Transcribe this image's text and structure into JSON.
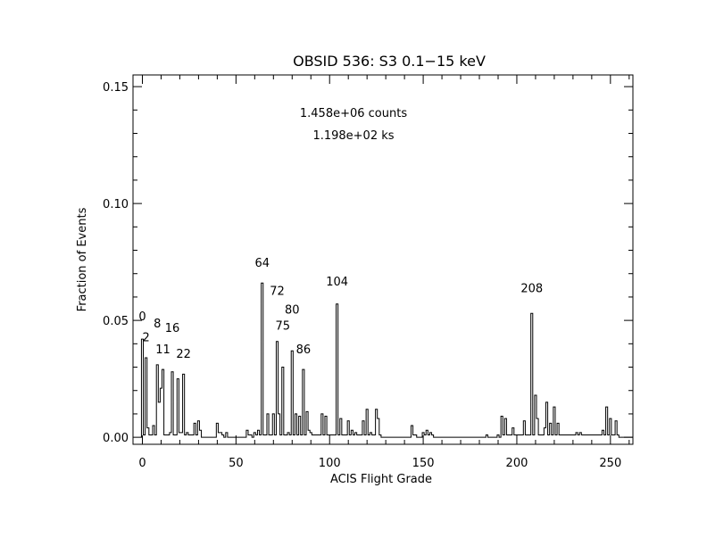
{
  "chart_data": {
    "type": "bar",
    "title": "OBSID 536: S3 0.1−15 keV",
    "xlabel": "ACIS Flight Grade",
    "ylabel": "Fraction of Events",
    "xlim": [
      -5,
      262
    ],
    "ylim": [
      -0.003,
      0.155
    ],
    "xticks": [
      0,
      50,
      100,
      150,
      200,
      250
    ],
    "xtick_labels": [
      "0",
      "50",
      "100",
      "150",
      "200",
      "250"
    ],
    "yticks": [
      0,
      0.05,
      0.1,
      0.15
    ],
    "ytick_labels": [
      "0.00",
      "0.05",
      "0.10",
      "0.15"
    ],
    "info_lines": [
      "1.458e+06 counts",
      "1.198e+02 ks"
    ],
    "grade_labels": [
      {
        "text": "0",
        "x": 0,
        "y": 0.05
      },
      {
        "text": "2",
        "x": 2,
        "y": 0.041
      },
      {
        "text": "8",
        "x": 8,
        "y": 0.047
      },
      {
        "text": "11",
        "x": 11,
        "y": 0.036
      },
      {
        "text": "16",
        "x": 16,
        "y": 0.045
      },
      {
        "text": "22",
        "x": 22,
        "y": 0.034
      },
      {
        "text": "64",
        "x": 64,
        "y": 0.073
      },
      {
        "text": "72",
        "x": 72,
        "y": 0.061
      },
      {
        "text": "75",
        "x": 75,
        "y": 0.046
      },
      {
        "text": "80",
        "x": 80,
        "y": 0.053
      },
      {
        "text": "86",
        "x": 86,
        "y": 0.036
      },
      {
        "text": "104",
        "x": 104,
        "y": 0.065
      },
      {
        "text": "208",
        "x": 208,
        "y": 0.062
      }
    ],
    "points": [
      [
        0,
        0.042
      ],
      [
        1,
        0.001
      ],
      [
        2,
        0.034
      ],
      [
        3,
        0.004
      ],
      [
        4,
        0.001
      ],
      [
        5,
        0.001
      ],
      [
        6,
        0.005
      ],
      [
        7,
        0.001
      ],
      [
        8,
        0.031
      ],
      [
        9,
        0.015
      ],
      [
        10,
        0.021
      ],
      [
        11,
        0.029
      ],
      [
        12,
        0.001
      ],
      [
        13,
        0.001
      ],
      [
        14,
        0.001
      ],
      [
        15,
        0.002
      ],
      [
        16,
        0.028
      ],
      [
        17,
        0.001
      ],
      [
        18,
        0.001
      ],
      [
        19,
        0.025
      ],
      [
        20,
        0.002
      ],
      [
        21,
        0.002
      ],
      [
        22,
        0.027
      ],
      [
        23,
        0.001
      ],
      [
        24,
        0.002
      ],
      [
        25,
        0.001
      ],
      [
        26,
        0.001
      ],
      [
        27,
        0.001
      ],
      [
        28,
        0.006
      ],
      [
        29,
        0.001
      ],
      [
        30,
        0.007
      ],
      [
        31,
        0.003
      ],
      [
        40,
        0.006
      ],
      [
        41,
        0.002
      ],
      [
        42,
        0.002
      ],
      [
        43,
        0.001
      ],
      [
        45,
        0.002
      ],
      [
        56,
        0.003
      ],
      [
        57,
        0.001
      ],
      [
        58,
        0.001
      ],
      [
        60,
        0.002
      ],
      [
        61,
        0.001
      ],
      [
        62,
        0.003
      ],
      [
        63,
        0.001
      ],
      [
        64,
        0.066
      ],
      [
        65,
        0.001
      ],
      [
        66,
        0.001
      ],
      [
        67,
        0.01
      ],
      [
        68,
        0.001
      ],
      [
        69,
        0.001
      ],
      [
        70,
        0.01
      ],
      [
        71,
        0.001
      ],
      [
        72,
        0.041
      ],
      [
        73,
        0.01
      ],
      [
        74,
        0.001
      ],
      [
        75,
        0.03
      ],
      [
        76,
        0.001
      ],
      [
        77,
        0.001
      ],
      [
        78,
        0.002
      ],
      [
        79,
        0.001
      ],
      [
        80,
        0.037
      ],
      [
        81,
        0.001
      ],
      [
        82,
        0.01
      ],
      [
        83,
        0.001
      ],
      [
        84,
        0.009
      ],
      [
        85,
        0.001
      ],
      [
        86,
        0.029
      ],
      [
        87,
        0.001
      ],
      [
        88,
        0.011
      ],
      [
        89,
        0.003
      ],
      [
        90,
        0.002
      ],
      [
        91,
        0.001
      ],
      [
        92,
        0.001
      ],
      [
        93,
        0.001
      ],
      [
        94,
        0.001
      ],
      [
        95,
        0.001
      ],
      [
        96,
        0.01
      ],
      [
        97,
        0.001
      ],
      [
        98,
        0.009
      ],
      [
        99,
        0.001
      ],
      [
        100,
        0.001
      ],
      [
        101,
        0.001
      ],
      [
        102,
        0.001
      ],
      [
        103,
        0.001
      ],
      [
        104,
        0.057
      ],
      [
        105,
        0.001
      ],
      [
        106,
        0.008
      ],
      [
        107,
        0.001
      ],
      [
        108,
        0.001
      ],
      [
        109,
        0.001
      ],
      [
        110,
        0.007
      ],
      [
        111,
        0.001
      ],
      [
        112,
        0.003
      ],
      [
        113,
        0.001
      ],
      [
        114,
        0.002
      ],
      [
        115,
        0.001
      ],
      [
        116,
        0.001
      ],
      [
        117,
        0.001
      ],
      [
        118,
        0.007
      ],
      [
        119,
        0.001
      ],
      [
        120,
        0.012
      ],
      [
        121,
        0.001
      ],
      [
        122,
        0.002
      ],
      [
        123,
        0.001
      ],
      [
        124,
        0.001
      ],
      [
        125,
        0.012
      ],
      [
        126,
        0.008
      ],
      [
        127,
        0.001
      ],
      [
        144,
        0.005
      ],
      [
        145,
        0.001
      ],
      [
        146,
        0.001
      ],
      [
        150,
        0.002
      ],
      [
        151,
        0.001
      ],
      [
        152,
        0.003
      ],
      [
        153,
        0.001
      ],
      [
        154,
        0.002
      ],
      [
        155,
        0.001
      ],
      [
        184,
        0.001
      ],
      [
        190,
        0.001
      ],
      [
        192,
        0.009
      ],
      [
        193,
        0.001
      ],
      [
        194,
        0.008
      ],
      [
        195,
        0.001
      ],
      [
        196,
        0.001
      ],
      [
        197,
        0.001
      ],
      [
        198,
        0.004
      ],
      [
        199,
        0.001
      ],
      [
        200,
        0.001
      ],
      [
        201,
        0.001
      ],
      [
        202,
        0.001
      ],
      [
        203,
        0.001
      ],
      [
        204,
        0.007
      ],
      [
        205,
        0.001
      ],
      [
        206,
        0.001
      ],
      [
        207,
        0.001
      ],
      [
        208,
        0.053
      ],
      [
        209,
        0.001
      ],
      [
        210,
        0.018
      ],
      [
        211,
        0.008
      ],
      [
        212,
        0.001
      ],
      [
        213,
        0.001
      ],
      [
        214,
        0.001
      ],
      [
        215,
        0.004
      ],
      [
        216,
        0.015
      ],
      [
        217,
        0.001
      ],
      [
        218,
        0.006
      ],
      [
        219,
        0.001
      ],
      [
        220,
        0.013
      ],
      [
        221,
        0.001
      ],
      [
        222,
        0.006
      ],
      [
        223,
        0.001
      ],
      [
        224,
        0.001
      ],
      [
        225,
        0.001
      ],
      [
        226,
        0.001
      ],
      [
        227,
        0.001
      ],
      [
        228,
        0.001
      ],
      [
        229,
        0.001
      ],
      [
        230,
        0.001
      ],
      [
        231,
        0.001
      ],
      [
        232,
        0.002
      ],
      [
        233,
        0.001
      ],
      [
        234,
        0.002
      ],
      [
        235,
        0.001
      ],
      [
        236,
        0.001
      ],
      [
        237,
        0.001
      ],
      [
        238,
        0.001
      ],
      [
        239,
        0.001
      ],
      [
        240,
        0.001
      ],
      [
        241,
        0.001
      ],
      [
        242,
        0.001
      ],
      [
        243,
        0.001
      ],
      [
        244,
        0.001
      ],
      [
        245,
        0.001
      ],
      [
        246,
        0.003
      ],
      [
        247,
        0.001
      ],
      [
        248,
        0.013
      ],
      [
        249,
        0.001
      ],
      [
        250,
        0.008
      ],
      [
        251,
        0.001
      ],
      [
        252,
        0.001
      ],
      [
        253,
        0.007
      ],
      [
        254,
        0.001
      ]
    ]
  }
}
